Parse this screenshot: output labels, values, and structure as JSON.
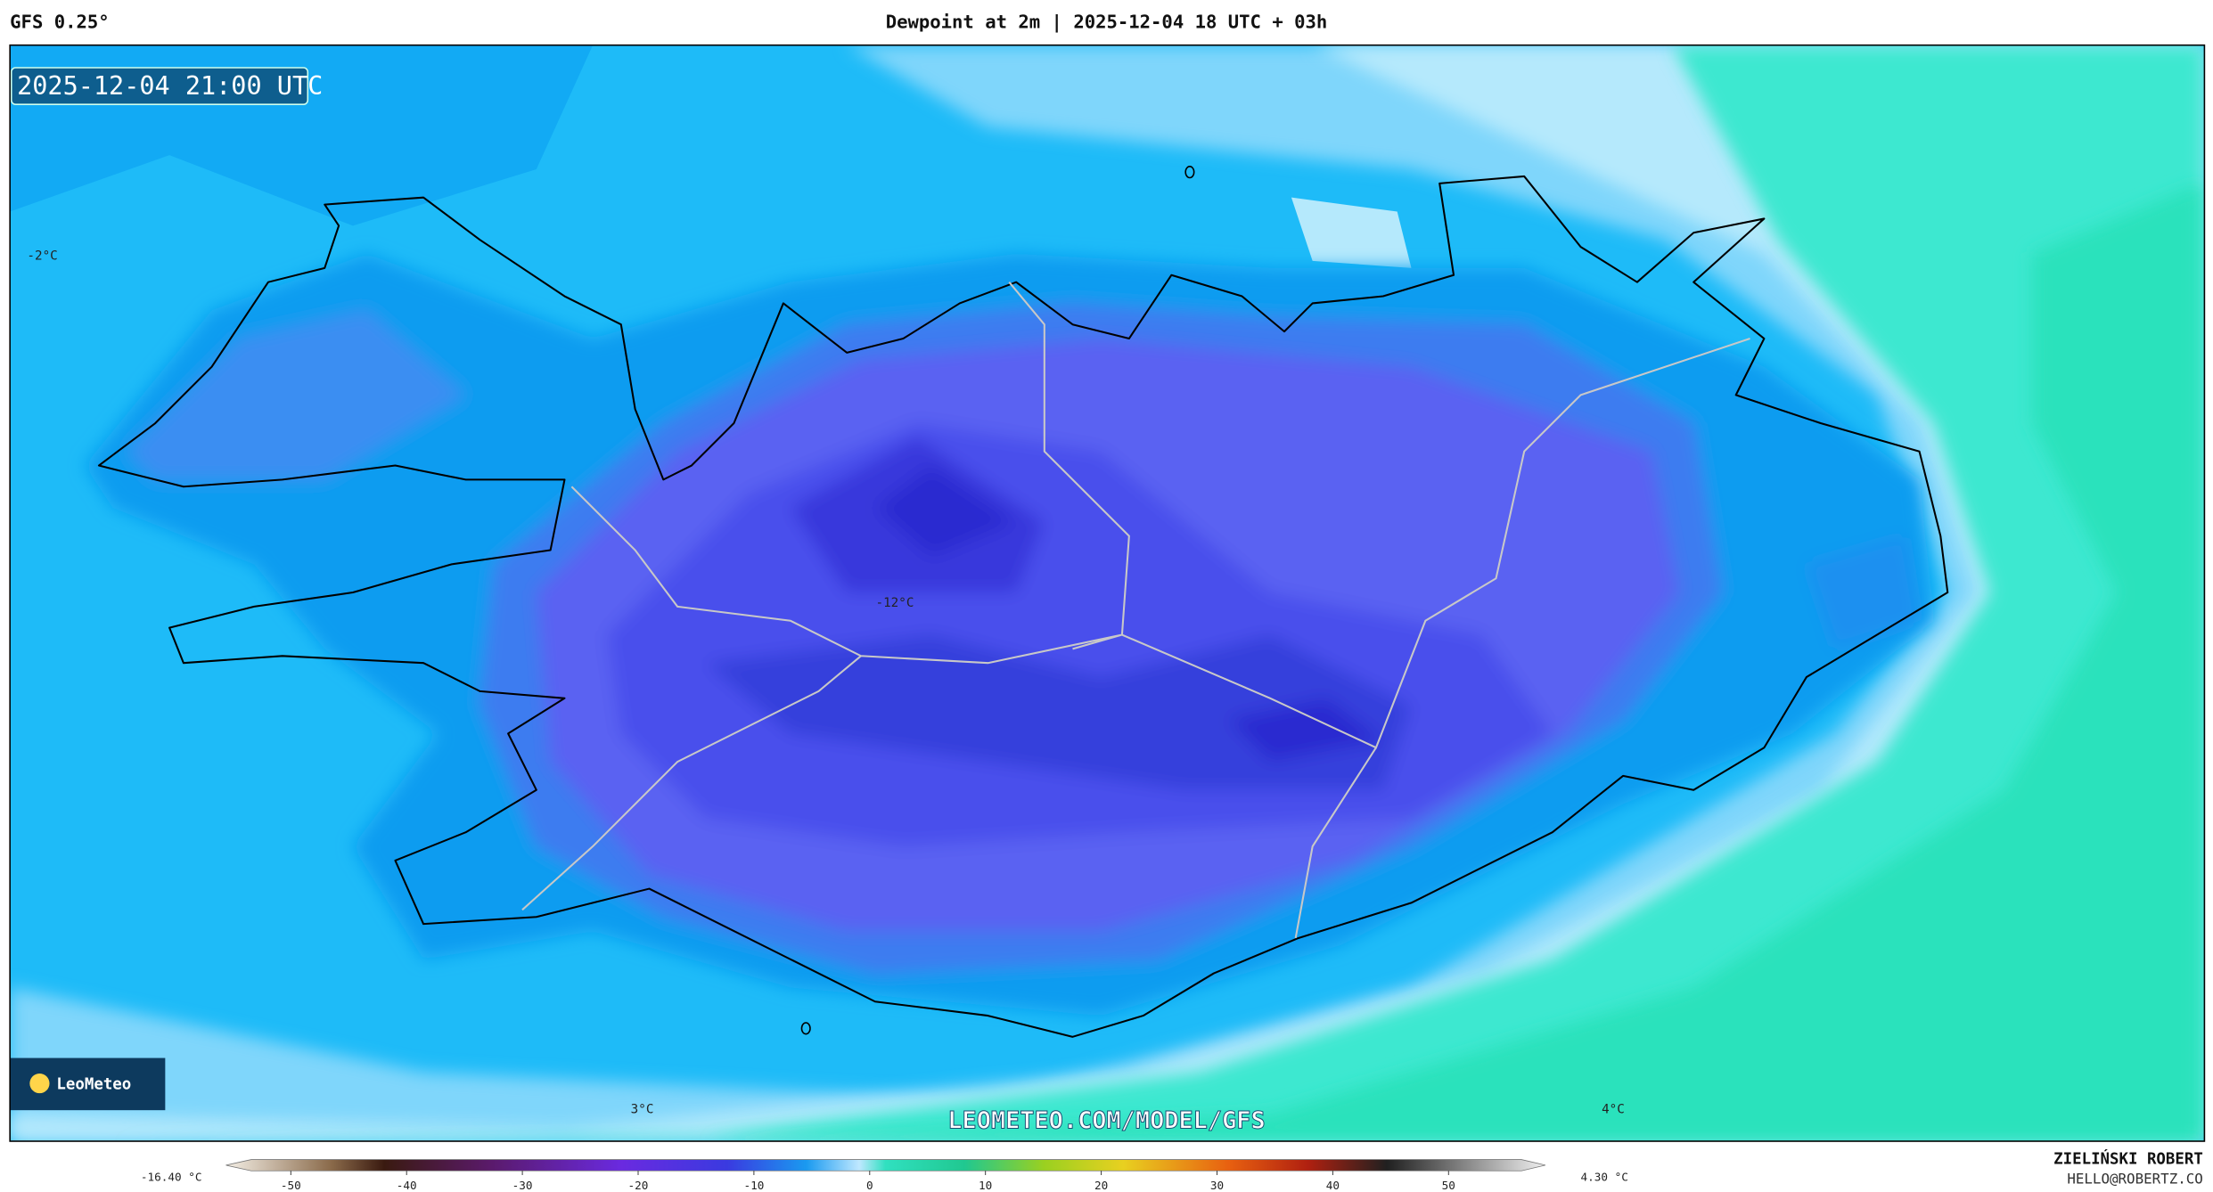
{
  "header": {
    "model": "GFS 0.25°",
    "title": "Dewpoint at 2m | 2025-12-04 18 UTC + 03h"
  },
  "map": {
    "valid_time": "2025-12-04 21:00 UTC",
    "labels": [
      "-2°C",
      "-12°C",
      "3°C",
      "4°C"
    ],
    "watermark": "LEOMETEO.COM/MODEL/GFS",
    "logo": "LeoMeteo"
  },
  "colorbar": {
    "min_label": "-16.40 °C",
    "max_label": "4.30 °C",
    "range": [
      -55,
      58
    ],
    "ticks": [
      -50,
      -40,
      -30,
      -20,
      -10,
      0,
      10,
      20,
      30,
      40,
      50
    ]
  },
  "footer": {
    "author": "ZIELIŃSKI ROBERT",
    "contact": "HELLO@ROBERTZ.CO"
  }
}
